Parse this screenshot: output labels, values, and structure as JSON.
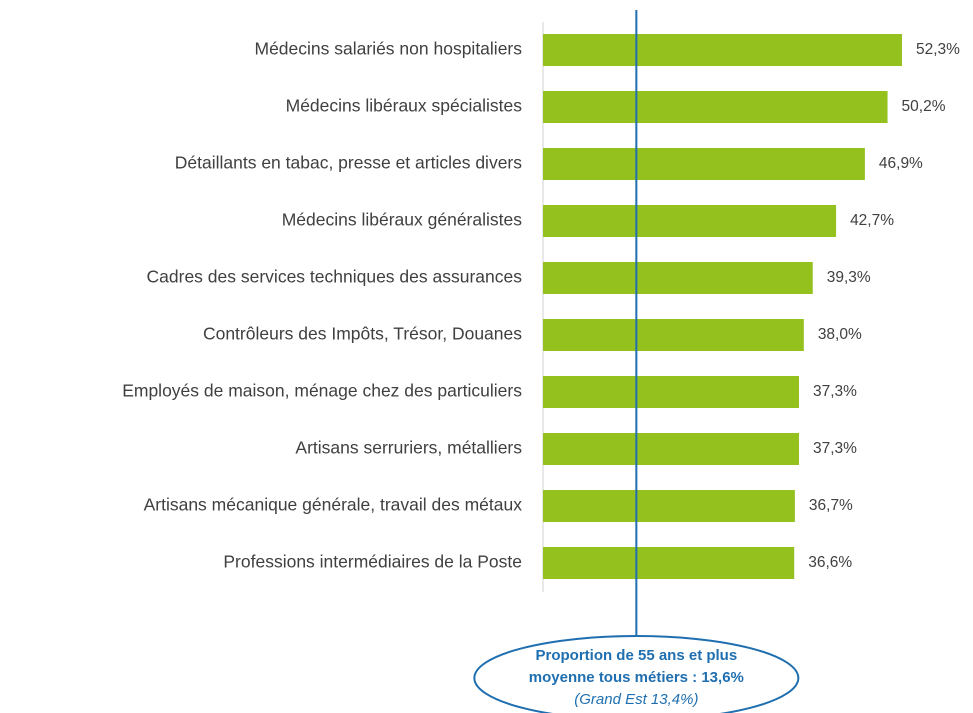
{
  "chart_data": {
    "type": "bar",
    "orientation": "horizontal",
    "categories": [
      "Médecins salariés non hospitaliers",
      "Médecins libéraux spécialistes",
      "Détaillants en tabac, presse et articles divers",
      "Médecins libéraux généralistes",
      "Cadres des services techniques des assurances",
      "Contrôleurs des Impôts, Trésor, Douanes",
      "Employés de maison, ménage chez des particuliers",
      "Artisans serruriers, métalliers",
      "Artisans mécanique générale, travail des métaux",
      "Professions intermédiaires de la Poste"
    ],
    "values": [
      52.3,
      50.2,
      46.9,
      42.7,
      39.3,
      38.0,
      37.3,
      37.3,
      36.7,
      36.6
    ],
    "value_labels": [
      "52,3%",
      "50,2%",
      "46,9%",
      "42,7%",
      "39,3%",
      "38,0%",
      "37,3%",
      "37,3%",
      "36,7%",
      "36,6%"
    ],
    "color": "#95c11f",
    "xlim": [
      0,
      55
    ],
    "reference_line": {
      "value": 13.6,
      "color": "#1f6fb0",
      "label": [
        "Proportion de 55 ans et plus",
        "moyenne tous métiers : 13,6%",
        "(Grand Est 13,4%)"
      ]
    }
  }
}
